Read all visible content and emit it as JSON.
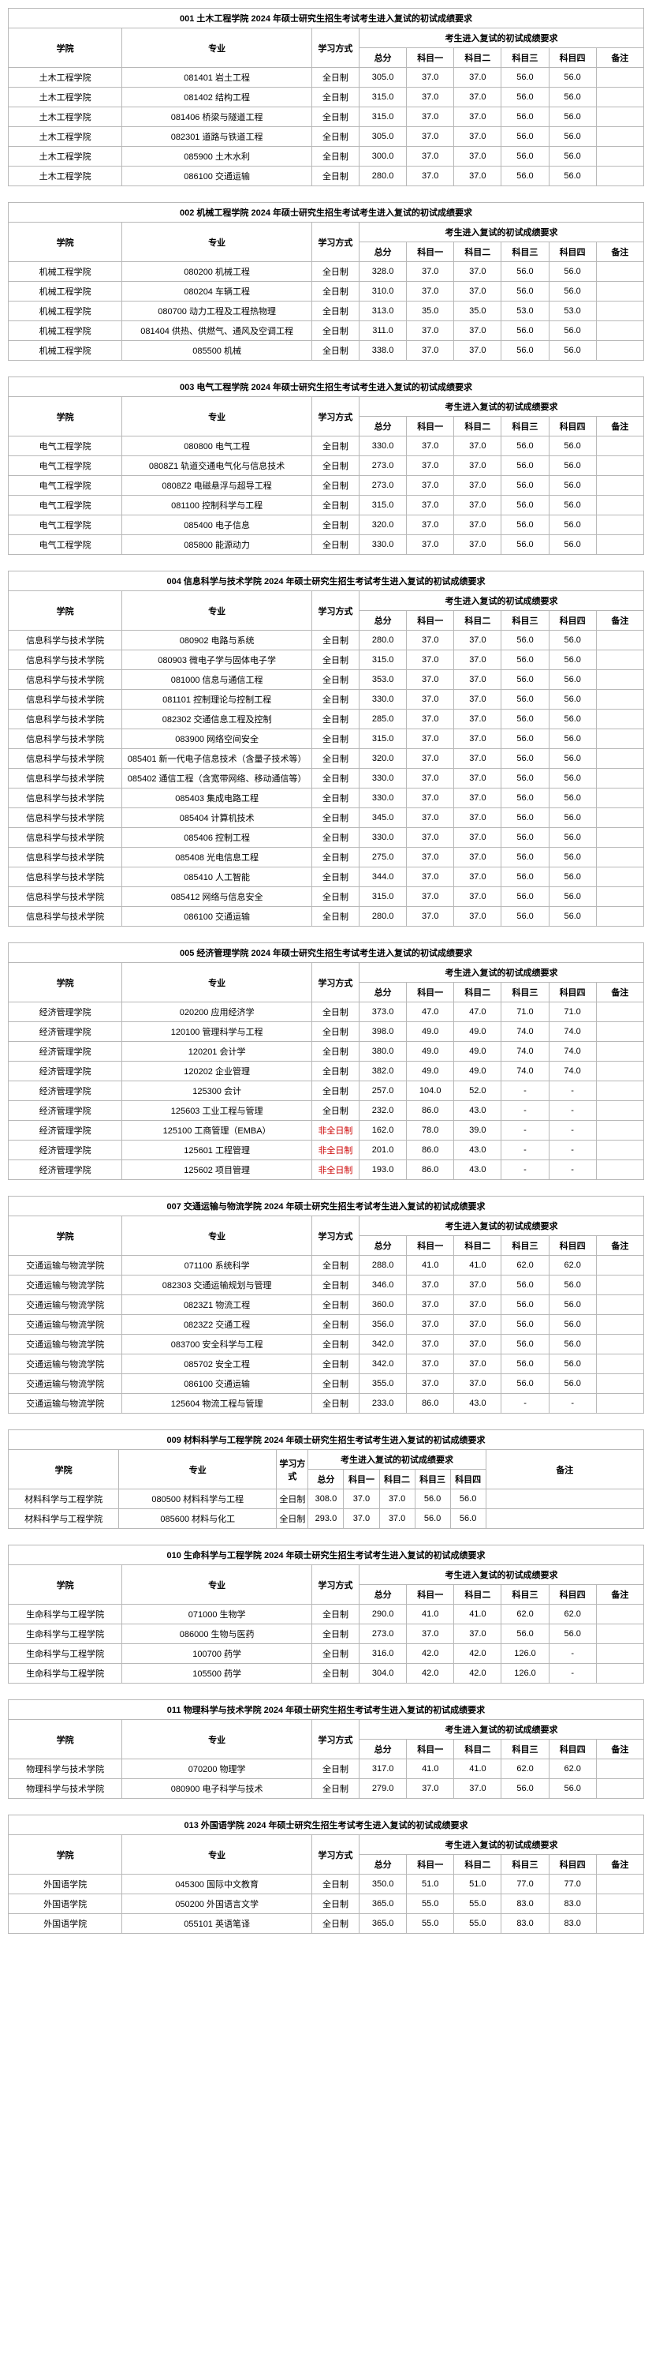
{
  "common": {
    "col_school": "学院",
    "col_major": "专业",
    "col_mode": "学习方式",
    "col_req": "考生进入复试的初试成绩要求",
    "col_total": "总分",
    "col_s1": "科目一",
    "col_s2": "科目二",
    "col_s3": "科目三",
    "col_s4": "科目四",
    "col_note": "备注",
    "col_mode_alt": "学习方式"
  },
  "tables": [
    {
      "title": "001 土木工程学院 2024 年硕士研究生招生考试考生进入复试的初试成绩要求",
      "rows": [
        [
          "土木工程学院",
          "081401 岩土工程",
          "全日制",
          "305.0",
          "37.0",
          "37.0",
          "56.0",
          "56.0",
          ""
        ],
        [
          "土木工程学院",
          "081402 结构工程",
          "全日制",
          "315.0",
          "37.0",
          "37.0",
          "56.0",
          "56.0",
          ""
        ],
        [
          "土木工程学院",
          "081406 桥梁与隧道工程",
          "全日制",
          "315.0",
          "37.0",
          "37.0",
          "56.0",
          "56.0",
          ""
        ],
        [
          "土木工程学院",
          "082301 道路与铁道工程",
          "全日制",
          "305.0",
          "37.0",
          "37.0",
          "56.0",
          "56.0",
          ""
        ],
        [
          "土木工程学院",
          "085900 土木水利",
          "全日制",
          "300.0",
          "37.0",
          "37.0",
          "56.0",
          "56.0",
          ""
        ],
        [
          "土木工程学院",
          "086100 交通运输",
          "全日制",
          "280.0",
          "37.0",
          "37.0",
          "56.0",
          "56.0",
          ""
        ]
      ]
    },
    {
      "title": "002 机械工程学院 2024 年硕士研究生招生考试考生进入复试的初试成绩要求",
      "rows": [
        [
          "机械工程学院",
          "080200 机械工程",
          "全日制",
          "328.0",
          "37.0",
          "37.0",
          "56.0",
          "56.0",
          ""
        ],
        [
          "机械工程学院",
          "080204 车辆工程",
          "全日制",
          "310.0",
          "37.0",
          "37.0",
          "56.0",
          "56.0",
          ""
        ],
        [
          "机械工程学院",
          "080700 动力工程及工程热物理",
          "全日制",
          "313.0",
          "35.0",
          "35.0",
          "53.0",
          "53.0",
          ""
        ],
        [
          "机械工程学院",
          "081404 供热、供燃气、通风及空调工程",
          "全日制",
          "311.0",
          "37.0",
          "37.0",
          "56.0",
          "56.0",
          ""
        ],
        [
          "机械工程学院",
          "085500 机械",
          "全日制",
          "338.0",
          "37.0",
          "37.0",
          "56.0",
          "56.0",
          ""
        ]
      ]
    },
    {
      "title": "003 电气工程学院 2024 年硕士研究生招生考试考生进入复试的初试成绩要求",
      "rows": [
        [
          "电气工程学院",
          "080800 电气工程",
          "全日制",
          "330.0",
          "37.0",
          "37.0",
          "56.0",
          "56.0",
          ""
        ],
        [
          "电气工程学院",
          "0808Z1 轨道交通电气化与信息技术",
          "全日制",
          "273.0",
          "37.0",
          "37.0",
          "56.0",
          "56.0",
          ""
        ],
        [
          "电气工程学院",
          "0808Z2 电磁悬浮与超导工程",
          "全日制",
          "273.0",
          "37.0",
          "37.0",
          "56.0",
          "56.0",
          ""
        ],
        [
          "电气工程学院",
          "081100 控制科学与工程",
          "全日制",
          "315.0",
          "37.0",
          "37.0",
          "56.0",
          "56.0",
          ""
        ],
        [
          "电气工程学院",
          "085400 电子信息",
          "全日制",
          "320.0",
          "37.0",
          "37.0",
          "56.0",
          "56.0",
          ""
        ],
        [
          "电气工程学院",
          "085800 能源动力",
          "全日制",
          "330.0",
          "37.0",
          "37.0",
          "56.0",
          "56.0",
          ""
        ]
      ]
    },
    {
      "title": "004 信息科学与技术学院 2024 年硕士研究生招生考试考生进入复试的初试成绩要求",
      "rows": [
        [
          "信息科学与技术学院",
          "080902 电路与系统",
          "全日制",
          "280.0",
          "37.0",
          "37.0",
          "56.0",
          "56.0",
          ""
        ],
        [
          "信息科学与技术学院",
          "080903 微电子学与固体电子学",
          "全日制",
          "315.0",
          "37.0",
          "37.0",
          "56.0",
          "56.0",
          ""
        ],
        [
          "信息科学与技术学院",
          "081000 信息与通信工程",
          "全日制",
          "353.0",
          "37.0",
          "37.0",
          "56.0",
          "56.0",
          ""
        ],
        [
          "信息科学与技术学院",
          "081101 控制理论与控制工程",
          "全日制",
          "330.0",
          "37.0",
          "37.0",
          "56.0",
          "56.0",
          ""
        ],
        [
          "信息科学与技术学院",
          "082302 交通信息工程及控制",
          "全日制",
          "285.0",
          "37.0",
          "37.0",
          "56.0",
          "56.0",
          ""
        ],
        [
          "信息科学与技术学院",
          "083900 网络空间安全",
          "全日制",
          "315.0",
          "37.0",
          "37.0",
          "56.0",
          "56.0",
          ""
        ],
        [
          "信息科学与技术学院",
          "085401 新一代电子信息技术（含量子技术等）",
          "全日制",
          "320.0",
          "37.0",
          "37.0",
          "56.0",
          "56.0",
          ""
        ],
        [
          "信息科学与技术学院",
          "085402 通信工程（含宽带网络、移动通信等）",
          "全日制",
          "330.0",
          "37.0",
          "37.0",
          "56.0",
          "56.0",
          ""
        ],
        [
          "信息科学与技术学院",
          "085403 集成电路工程",
          "全日制",
          "330.0",
          "37.0",
          "37.0",
          "56.0",
          "56.0",
          ""
        ],
        [
          "信息科学与技术学院",
          "085404 计算机技术",
          "全日制",
          "345.0",
          "37.0",
          "37.0",
          "56.0",
          "56.0",
          ""
        ],
        [
          "信息科学与技术学院",
          "085406 控制工程",
          "全日制",
          "330.0",
          "37.0",
          "37.0",
          "56.0",
          "56.0",
          ""
        ],
        [
          "信息科学与技术学院",
          "085408 光电信息工程",
          "全日制",
          "275.0",
          "37.0",
          "37.0",
          "56.0",
          "56.0",
          ""
        ],
        [
          "信息科学与技术学院",
          "085410 人工智能",
          "全日制",
          "344.0",
          "37.0",
          "37.0",
          "56.0",
          "56.0",
          ""
        ],
        [
          "信息科学与技术学院",
          "085412 网络与信息安全",
          "全日制",
          "315.0",
          "37.0",
          "37.0",
          "56.0",
          "56.0",
          ""
        ],
        [
          "信息科学与技术学院",
          "086100 交通运输",
          "全日制",
          "280.0",
          "37.0",
          "37.0",
          "56.0",
          "56.0",
          ""
        ]
      ]
    },
    {
      "title": "005 经济管理学院 2024 年硕士研究生招生考试考生进入复试的初试成绩要求",
      "rows": [
        [
          "经济管理学院",
          "020200 应用经济学",
          "全日制",
          "373.0",
          "47.0",
          "47.0",
          "71.0",
          "71.0",
          ""
        ],
        [
          "经济管理学院",
          "120100 管理科学与工程",
          "全日制",
          "398.0",
          "49.0",
          "49.0",
          "74.0",
          "74.0",
          ""
        ],
        [
          "经济管理学院",
          "120201 会计学",
          "全日制",
          "380.0",
          "49.0",
          "49.0",
          "74.0",
          "74.0",
          ""
        ],
        [
          "经济管理学院",
          "120202 企业管理",
          "全日制",
          "382.0",
          "49.0",
          "49.0",
          "74.0",
          "74.0",
          ""
        ],
        [
          "经济管理学院",
          "125300 会计",
          "全日制",
          "257.0",
          "104.0",
          "52.0",
          "-",
          "-",
          ""
        ],
        [
          "经济管理学院",
          "125603 工业工程与管理",
          "全日制",
          "232.0",
          "86.0",
          "43.0",
          "-",
          "-",
          ""
        ],
        [
          "经济管理学院",
          "125100 工商管理（EMBA）",
          "非全日制",
          "162.0",
          "78.0",
          "39.0",
          "-",
          "-",
          ""
        ],
        [
          "经济管理学院",
          "125601 工程管理",
          "非全日制",
          "201.0",
          "86.0",
          "43.0",
          "-",
          "-",
          ""
        ],
        [
          "经济管理学院",
          "125602 项目管理",
          "非全日制",
          "193.0",
          "86.0",
          "43.0",
          "-",
          "-",
          ""
        ]
      ],
      "red_mode_indices": [
        6,
        7,
        8
      ]
    },
    {
      "title": "007 交通运输与物流学院 2024 年硕士研究生招生考试考生进入复试的初试成绩要求",
      "rows": [
        [
          "交通运输与物流学院",
          "071100 系统科学",
          "全日制",
          "288.0",
          "41.0",
          "41.0",
          "62.0",
          "62.0",
          ""
        ],
        [
          "交通运输与物流学院",
          "082303 交通运输规划与管理",
          "全日制",
          "346.0",
          "37.0",
          "37.0",
          "56.0",
          "56.0",
          ""
        ],
        [
          "交通运输与物流学院",
          "0823Z1 物流工程",
          "全日制",
          "360.0",
          "37.0",
          "37.0",
          "56.0",
          "56.0",
          ""
        ],
        [
          "交通运输与物流学院",
          "0823Z2 交通工程",
          "全日制",
          "356.0",
          "37.0",
          "37.0",
          "56.0",
          "56.0",
          ""
        ],
        [
          "交通运输与物流学院",
          "083700 安全科学与工程",
          "全日制",
          "342.0",
          "37.0",
          "37.0",
          "56.0",
          "56.0",
          ""
        ],
        [
          "交通运输与物流学院",
          "085702 安全工程",
          "全日制",
          "342.0",
          "37.0",
          "37.0",
          "56.0",
          "56.0",
          ""
        ],
        [
          "交通运输与物流学院",
          "086100 交通运输",
          "全日制",
          "355.0",
          "37.0",
          "37.0",
          "56.0",
          "56.0",
          ""
        ],
        [
          "交通运输与物流学院",
          "125604 物流工程与管理",
          "全日制",
          "233.0",
          "86.0",
          "43.0",
          "-",
          "-",
          ""
        ]
      ]
    },
    {
      "title": "009 材料科学与工程学院 2024 年硕士研究生招生考试考生进入复试的初试成绩要求",
      "variant": "narrow",
      "rows": [
        [
          "材料科学与工程学院",
          "080500 材料科学与工程",
          "全日制",
          "308.0",
          "37.0",
          "37.0",
          "56.0",
          "56.0",
          ""
        ],
        [
          "材料科学与工程学院",
          "085600 材料与化工",
          "全日制",
          "293.0",
          "37.0",
          "37.0",
          "56.0",
          "56.0",
          ""
        ]
      ]
    },
    {
      "title": "010 生命科学与工程学院 2024 年硕士研究生招生考试考生进入复试的初试成绩要求",
      "rows": [
        [
          "生命科学与工程学院",
          "071000 生物学",
          "全日制",
          "290.0",
          "41.0",
          "41.0",
          "62.0",
          "62.0",
          ""
        ],
        [
          "生命科学与工程学院",
          "086000 生物与医药",
          "全日制",
          "273.0",
          "37.0",
          "37.0",
          "56.0",
          "56.0",
          ""
        ],
        [
          "生命科学与工程学院",
          "100700 药学",
          "全日制",
          "316.0",
          "42.0",
          "42.0",
          "126.0",
          "-",
          ""
        ],
        [
          "生命科学与工程学院",
          "105500 药学",
          "全日制",
          "304.0",
          "42.0",
          "42.0",
          "126.0",
          "-",
          ""
        ]
      ]
    },
    {
      "title": "011 物理科学与技术学院 2024 年硕士研究生招生考试考生进入复试的初试成绩要求",
      "rows": [
        [
          "物理科学与技术学院",
          "070200 物理学",
          "全日制",
          "317.0",
          "41.0",
          "41.0",
          "62.0",
          "62.0",
          ""
        ],
        [
          "物理科学与技术学院",
          "080900 电子科学与技术",
          "全日制",
          "279.0",
          "37.0",
          "37.0",
          "56.0",
          "56.0",
          ""
        ]
      ]
    },
    {
      "title": "013 外国语学院 2024 年硕士研究生招生考试考生进入复试的初试成绩要求",
      "rows": [
        [
          "外国语学院",
          "045300 国际中文教育",
          "全日制",
          "350.0",
          "51.0",
          "51.0",
          "77.0",
          "77.0",
          ""
        ],
        [
          "外国语学院",
          "050200 外国语言文学",
          "全日制",
          "365.0",
          "55.0",
          "55.0",
          "83.0",
          "83.0",
          ""
        ],
        [
          "外国语学院",
          "055101 英语笔译",
          "全日制",
          "365.0",
          "55.0",
          "55.0",
          "83.0",
          "83.0",
          ""
        ]
      ]
    }
  ]
}
